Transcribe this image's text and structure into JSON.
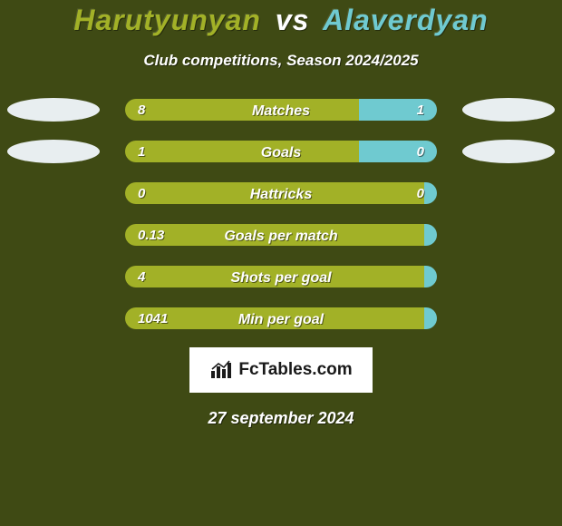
{
  "background_color": "#3f4a14",
  "title": {
    "player1": "Harutyunyan",
    "vs": "vs",
    "player2": "Alaverdyan",
    "player1_color": "#a2b127",
    "player2_color": "#6fcad0",
    "fontsize": 32
  },
  "subtitle": {
    "text": "Club competitions, Season 2024/2025",
    "fontsize": 17
  },
  "avatar_color": "#e8eef0",
  "bar_colors": {
    "left": "#a2b127",
    "right": "#6fcad0",
    "empty_left": "#a2b127",
    "border_radius": 14
  },
  "stats": [
    {
      "label": "Matches",
      "left_val": "8",
      "right_val": "1",
      "left_pct": 75,
      "right_pct": 25,
      "show_avatars": true
    },
    {
      "label": "Goals",
      "left_val": "1",
      "right_val": "0",
      "left_pct": 75,
      "right_pct": 25,
      "show_avatars": true
    },
    {
      "label": "Hattricks",
      "left_val": "0",
      "right_val": "0",
      "left_pct": 100,
      "right_pct": 0,
      "show_avatars": false
    },
    {
      "label": "Goals per match",
      "left_val": "0.13",
      "right_val": "",
      "left_pct": 100,
      "right_pct": 0,
      "show_avatars": false
    },
    {
      "label": "Shots per goal",
      "left_val": "4",
      "right_val": "",
      "left_pct": 100,
      "right_pct": 0,
      "show_avatars": false
    },
    {
      "label": "Min per goal",
      "left_val": "1041",
      "right_val": "",
      "left_pct": 100,
      "right_pct": 0,
      "show_avatars": false
    }
  ],
  "logo": {
    "text": "FcTables.com",
    "bg": "#ffffff",
    "text_color": "#1a1a1a",
    "fontsize": 19
  },
  "date": "27 september 2024"
}
